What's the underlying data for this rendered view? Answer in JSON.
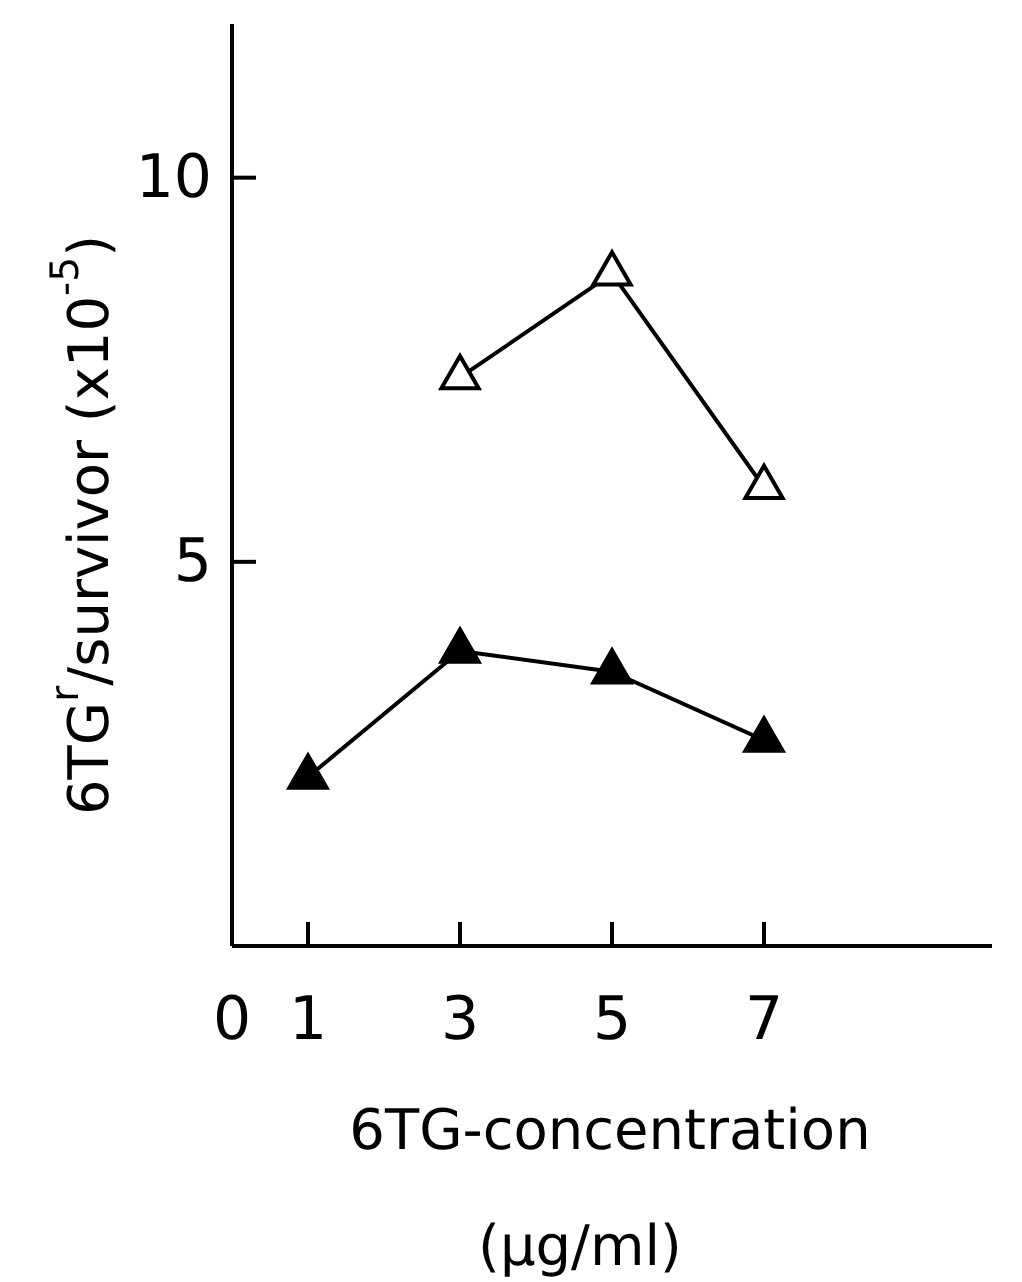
{
  "chart_data": {
    "type": "line",
    "xlabel": "6TG-concentration\n(μg/ml)",
    "ylabel": "6TG$^{r}$/survivor (x10$^{-5}$)",
    "xlim": [
      0,
      10
    ],
    "xticks": [
      {
        "value": 0,
        "label": "0"
      },
      1,
      3,
      5,
      7
    ],
    "ylim": [
      0,
      12
    ],
    "yticks": [
      5,
      10
    ],
    "grid": false,
    "marker": "triangle",
    "line_style": "solid",
    "series": [
      {
        "color": "#000000",
        "colors": [
          "#ffffff",
          "#ffffff",
          "#ffffff"
        ],
        "x": [
          3,
          5,
          7
        ],
        "values": [
          7.4,
          8.75,
          5.97
        ]
      },
      {
        "color": "#000000",
        "colors": [
          "#000000",
          "#000000",
          "#000000",
          "#000000"
        ],
        "x": [
          1,
          3,
          5,
          7
        ],
        "values": [
          2.2,
          3.84,
          3.57,
          2.68
        ]
      }
    ]
  }
}
